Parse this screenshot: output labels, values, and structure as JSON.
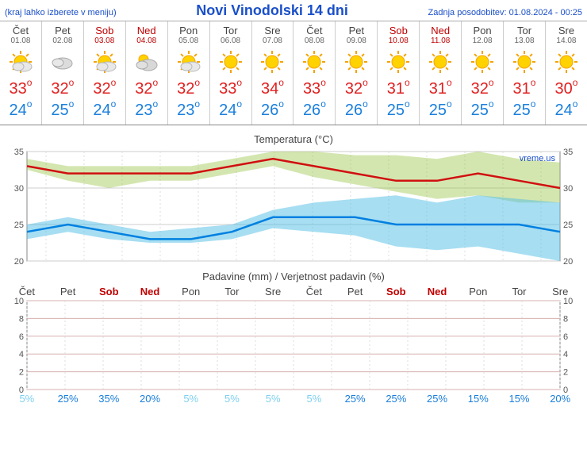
{
  "header": {
    "menu_note": "(kraj lahko izberete v meniju)",
    "title": "Novi Vinodolski 14 dni",
    "updated_label": "Zadnja posodobitev: 01.08.2024 - 00:25"
  },
  "colors": {
    "hi": "#e02020",
    "lo": "#1a7fdc",
    "weekend": "#c00000",
    "grid": "#cccccc",
    "axis_text": "#555555",
    "red_line": "#d01010",
    "blue_line": "#0080e0",
    "green_band": "rgba(160,200,80,0.45)",
    "cyan_band": "rgba(80,190,230,0.5)",
    "green_hatch": "rgba(100,160,40,0.4)",
    "cyan_hatch": "rgba(40,140,200,0.4)",
    "watermark": "#1a4fc9",
    "precip_grid": "#d8b0b0"
  },
  "days": [
    {
      "name": "Čet",
      "date": "01.08",
      "weekend": false,
      "icon": "partly",
      "hi": 33,
      "lo": 24
    },
    {
      "name": "Pet",
      "date": "02.08",
      "weekend": false,
      "icon": "cloudy",
      "hi": 32,
      "lo": 25
    },
    {
      "name": "Sob",
      "date": "03.08",
      "weekend": true,
      "icon": "partly",
      "hi": 32,
      "lo": 24
    },
    {
      "name": "Ned",
      "date": "04.08",
      "weekend": true,
      "icon": "mostlycloudy",
      "hi": 32,
      "lo": 23
    },
    {
      "name": "Pon",
      "date": "05.08",
      "weekend": false,
      "icon": "partly",
      "hi": 32,
      "lo": 23
    },
    {
      "name": "Tor",
      "date": "06.08",
      "weekend": false,
      "icon": "sunny",
      "hi": 33,
      "lo": 24
    },
    {
      "name": "Sre",
      "date": "07.08",
      "weekend": false,
      "icon": "sunny",
      "hi": 34,
      "lo": 26
    },
    {
      "name": "Čet",
      "date": "08.08",
      "weekend": false,
      "icon": "sunny",
      "hi": 33,
      "lo": 26
    },
    {
      "name": "Pet",
      "date": "09.08",
      "weekend": false,
      "icon": "sunny",
      "hi": 32,
      "lo": 26
    },
    {
      "name": "Sob",
      "date": "10.08",
      "weekend": true,
      "icon": "sunny",
      "hi": 31,
      "lo": 25
    },
    {
      "name": "Ned",
      "date": "11.08",
      "weekend": true,
      "icon": "sunny",
      "hi": 31,
      "lo": 25
    },
    {
      "name": "Pon",
      "date": "12.08",
      "weekend": false,
      "icon": "sunny",
      "hi": 32,
      "lo": 25
    },
    {
      "name": "Tor",
      "date": "13.08",
      "weekend": false,
      "icon": "sunny",
      "hi": 31,
      "lo": 25
    },
    {
      "name": "Sre",
      "date": "14.08",
      "weekend": false,
      "icon": "sunny",
      "hi": 30,
      "lo": 24
    }
  ],
  "temp_chart": {
    "title": "Temperatura (°C)",
    "watermark": "vreme.us",
    "ymin": 20,
    "ymax": 35,
    "ystep": 5,
    "hi_line": [
      33,
      32,
      32,
      32,
      32,
      33,
      34,
      33,
      32,
      31,
      31,
      32,
      31,
      30
    ],
    "hi_band_up": [
      34,
      33,
      33,
      33,
      33,
      34,
      35,
      35,
      34.5,
      34.5,
      34,
      35,
      34,
      33.5
    ],
    "hi_band_lo": [
      32.5,
      31,
      30,
      31,
      31,
      32,
      33,
      31.5,
      30.5,
      29.5,
      28.5,
      29,
      28,
      28
    ],
    "lo_line": [
      24,
      25,
      24,
      23,
      23,
      24,
      26,
      26,
      26,
      25,
      25,
      25,
      25,
      24
    ],
    "lo_band_up": [
      25,
      26,
      25,
      24,
      24.5,
      25,
      27,
      28,
      28.5,
      29,
      28,
      29,
      28.5,
      28
    ],
    "lo_band_lo": [
      23,
      24,
      23,
      22.5,
      22.5,
      23,
      24.5,
      24,
      23.5,
      22,
      21.5,
      22,
      21,
      20
    ]
  },
  "precip_chart": {
    "title": "Padavine (mm) / Verjetnost padavin (%)",
    "ymin": 0,
    "ymax": 10,
    "ystep": 2,
    "day_names": [
      "Čet",
      "Pet",
      "Sob",
      "Ned",
      "Pon",
      "Tor",
      "Sre",
      "Čet",
      "Pet",
      "Sob",
      "Ned",
      "Pon",
      "Tor",
      "Sre"
    ],
    "weekend": [
      false,
      false,
      true,
      true,
      false,
      false,
      false,
      false,
      false,
      true,
      true,
      false,
      false,
      false
    ],
    "pct": [
      5,
      25,
      35,
      20,
      5,
      5,
      5,
      5,
      25,
      25,
      25,
      15,
      15,
      20
    ]
  }
}
